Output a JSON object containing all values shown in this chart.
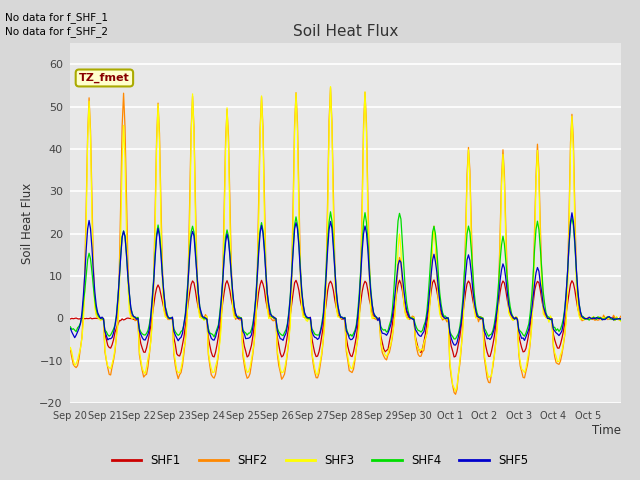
{
  "title": "Soil Heat Flux",
  "ylabel": "Soil Heat Flux",
  "xlabel": "Time",
  "ylim": [
    -20,
    65
  ],
  "yticks": [
    -20,
    -10,
    0,
    10,
    20,
    30,
    40,
    50,
    60
  ],
  "fig_facecolor": "#d8d8d8",
  "plot_facecolor": "#e8e8e8",
  "annotation_text1": "No data for f_SHF_1",
  "annotation_text2": "No data for f_SHF_2",
  "legend_label": "TZ_fmet",
  "series_colors": {
    "SHF1": "#cc0000",
    "SHF2": "#ff8800",
    "SHF3": "#ffff00",
    "SHF4": "#00dd00",
    "SHF5": "#0000cc"
  },
  "series_labels": [
    "SHF1",
    "SHF2",
    "SHF3",
    "SHF4",
    "SHF5"
  ],
  "gridline_color": "#ffffff"
}
